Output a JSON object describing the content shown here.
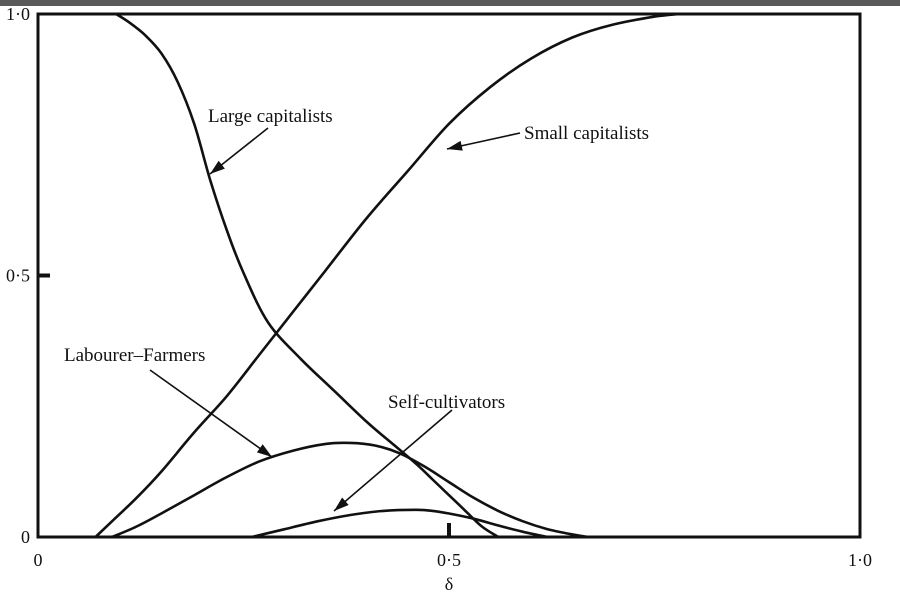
{
  "chart_data": {
    "type": "line",
    "title": "",
    "xlabel": "δ",
    "ylabel": "",
    "xlim": [
      0,
      1
    ],
    "ylim": [
      0,
      1
    ],
    "grid": false,
    "x_ticks": [
      {
        "value": 0,
        "label": "0"
      },
      {
        "value": 0.5,
        "label": "0·5"
      },
      {
        "value": 1,
        "label": "1·0"
      }
    ],
    "y_ticks": [
      {
        "value": 0,
        "label": "0"
      },
      {
        "value": 0.5,
        "label": "0·5"
      },
      {
        "value": 1,
        "label": "1·0"
      }
    ],
    "series": [
      {
        "name": "Large capitalists",
        "x": [
          0.095,
          0.11,
          0.13,
          0.15,
          0.17,
          0.19,
          0.21,
          0.23,
          0.25,
          0.28,
          0.32,
          0.36,
          0.4,
          0.43,
          0.46,
          0.48,
          0.5,
          0.52,
          0.54,
          0.56
        ],
        "y": [
          1.0,
          0.985,
          0.96,
          0.925,
          0.87,
          0.79,
          0.68,
          0.585,
          0.505,
          0.41,
          0.34,
          0.28,
          0.22,
          0.18,
          0.14,
          0.11,
          0.08,
          0.05,
          0.02,
          0.0
        ]
      },
      {
        "name": "Small capitalists",
        "x": [
          0.07,
          0.09,
          0.12,
          0.15,
          0.19,
          0.23,
          0.27,
          0.31,
          0.35,
          0.4,
          0.45,
          0.5,
          0.55,
          0.6,
          0.65,
          0.7,
          0.75,
          0.78
        ],
        "y": [
          0.0,
          0.03,
          0.075,
          0.125,
          0.2,
          0.27,
          0.35,
          0.43,
          0.51,
          0.61,
          0.7,
          0.79,
          0.86,
          0.915,
          0.955,
          0.98,
          0.995,
          1.0
        ]
      },
      {
        "name": "Labourer–Farmers",
        "x": [
          0.09,
          0.12,
          0.15,
          0.19,
          0.23,
          0.27,
          0.31,
          0.35,
          0.38,
          0.41,
          0.44,
          0.47,
          0.5,
          0.53,
          0.56,
          0.59,
          0.62,
          0.65,
          0.67
        ],
        "y": [
          0.0,
          0.02,
          0.045,
          0.08,
          0.115,
          0.145,
          0.165,
          0.178,
          0.18,
          0.175,
          0.16,
          0.135,
          0.105,
          0.075,
          0.05,
          0.03,
          0.015,
          0.005,
          0.0
        ]
      },
      {
        "name": "Self-cultivators",
        "x": [
          0.26,
          0.3,
          0.34,
          0.38,
          0.42,
          0.46,
          0.48,
          0.5,
          0.53,
          0.56,
          0.59,
          0.62
        ],
        "y": [
          0.0,
          0.015,
          0.03,
          0.042,
          0.05,
          0.052,
          0.05,
          0.045,
          0.035,
          0.022,
          0.01,
          0.0
        ]
      }
    ],
    "annotations": [
      {
        "text": "Large capitalists",
        "series": 0
      },
      {
        "text": "Small capitalists",
        "series": 1
      },
      {
        "text": "Labourer–Farmers",
        "series": 2
      },
      {
        "text": "Self-cultivators",
        "series": 3
      }
    ]
  }
}
